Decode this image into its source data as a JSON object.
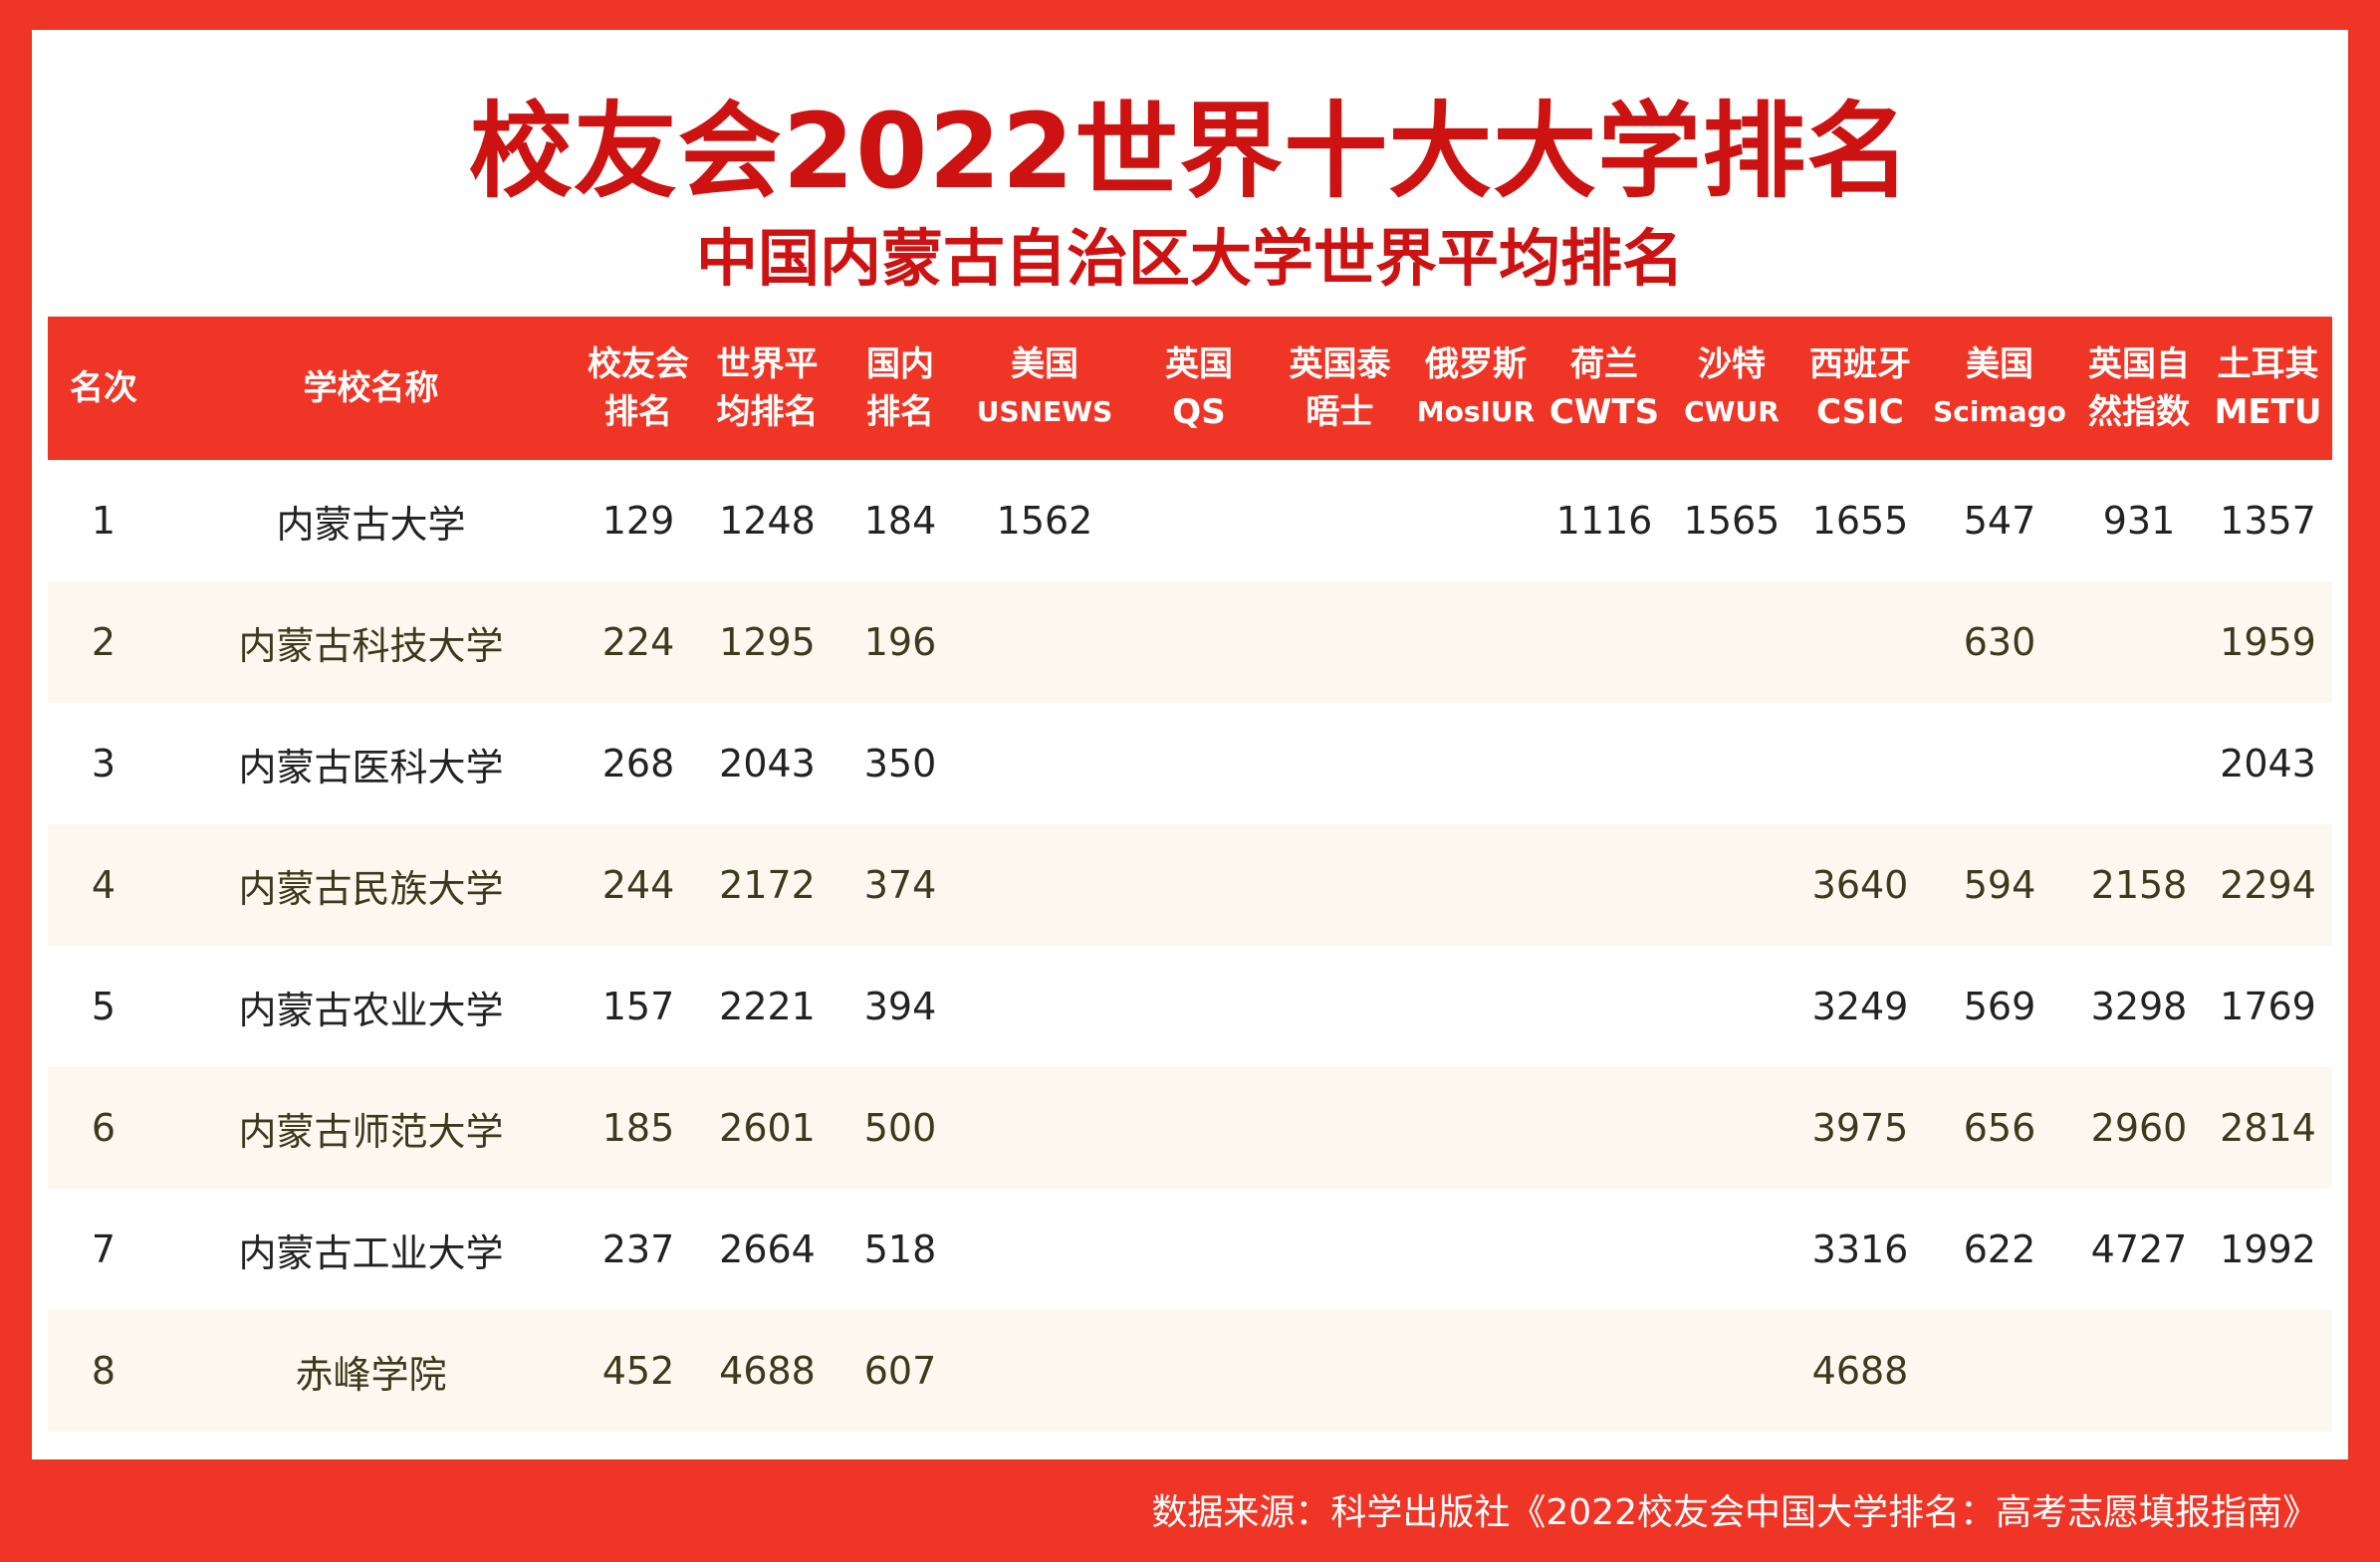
{
  "title": "校友会2022世界十大大学排名",
  "subtitle": "中国内蒙古自治区大学世界平均排名",
  "columns": [
    {
      "l1": "名次",
      "l2": ""
    },
    {
      "l1": "学校名称",
      "l2": ""
    },
    {
      "l1": "校友会",
      "l2": "排名"
    },
    {
      "l1": "世界平",
      "l2": "均排名"
    },
    {
      "l1": "国内",
      "l2": "排名"
    },
    {
      "l1": "美国",
      "l2": "USNEWS"
    },
    {
      "l1": "英国",
      "l2": "QS"
    },
    {
      "l1": "英国泰",
      "l2": "晤士"
    },
    {
      "l1": "俄罗斯",
      "l2": "MosIUR"
    },
    {
      "l1": "荷兰",
      "l2": "CWTS"
    },
    {
      "l1": "沙特",
      "l2": "CWUR"
    },
    {
      "l1": "西班牙",
      "l2": "CSIC"
    },
    {
      "l1": "美国",
      "l2": "Scimago"
    },
    {
      "l1": "英国自",
      "l2": "然指数"
    },
    {
      "l1": "土耳其",
      "l2": "METU"
    }
  ],
  "rows": [
    [
      "1",
      "内蒙古大学",
      "129",
      "1248",
      "184",
      "1562",
      "",
      "",
      "",
      "1116",
      "1565",
      "1655",
      "547",
      "931",
      "1357"
    ],
    [
      "2",
      "内蒙古科技大学",
      "224",
      "1295",
      "196",
      "",
      "",
      "",
      "",
      "",
      "",
      "",
      "630",
      "",
      "1959"
    ],
    [
      "3",
      "内蒙古医科大学",
      "268",
      "2043",
      "350",
      "",
      "",
      "",
      "",
      "",
      "",
      "",
      "",
      "",
      "2043"
    ],
    [
      "4",
      "内蒙古民族大学",
      "244",
      "2172",
      "374",
      "",
      "",
      "",
      "",
      "",
      "",
      "3640",
      "594",
      "2158",
      "2294"
    ],
    [
      "5",
      "内蒙古农业大学",
      "157",
      "2221",
      "394",
      "",
      "",
      "",
      "",
      "",
      "",
      "3249",
      "569",
      "3298",
      "1769"
    ],
    [
      "6",
      "内蒙古师范大学",
      "185",
      "2601",
      "500",
      "",
      "",
      "",
      "",
      "",
      "",
      "3975",
      "656",
      "2960",
      "2814"
    ],
    [
      "7",
      "内蒙古工业大学",
      "237",
      "2664",
      "518",
      "",
      "",
      "",
      "",
      "",
      "",
      "3316",
      "622",
      "4727",
      "1992"
    ],
    [
      "8",
      "赤峰学院",
      "452",
      "4688",
      "607",
      "",
      "",
      "",
      "",
      "",
      "",
      "4688",
      "",
      "",
      ""
    ]
  ],
  "footer": "数据来源：科学出版社《2022校友会中国大学排名：高考志愿填报指南》"
}
